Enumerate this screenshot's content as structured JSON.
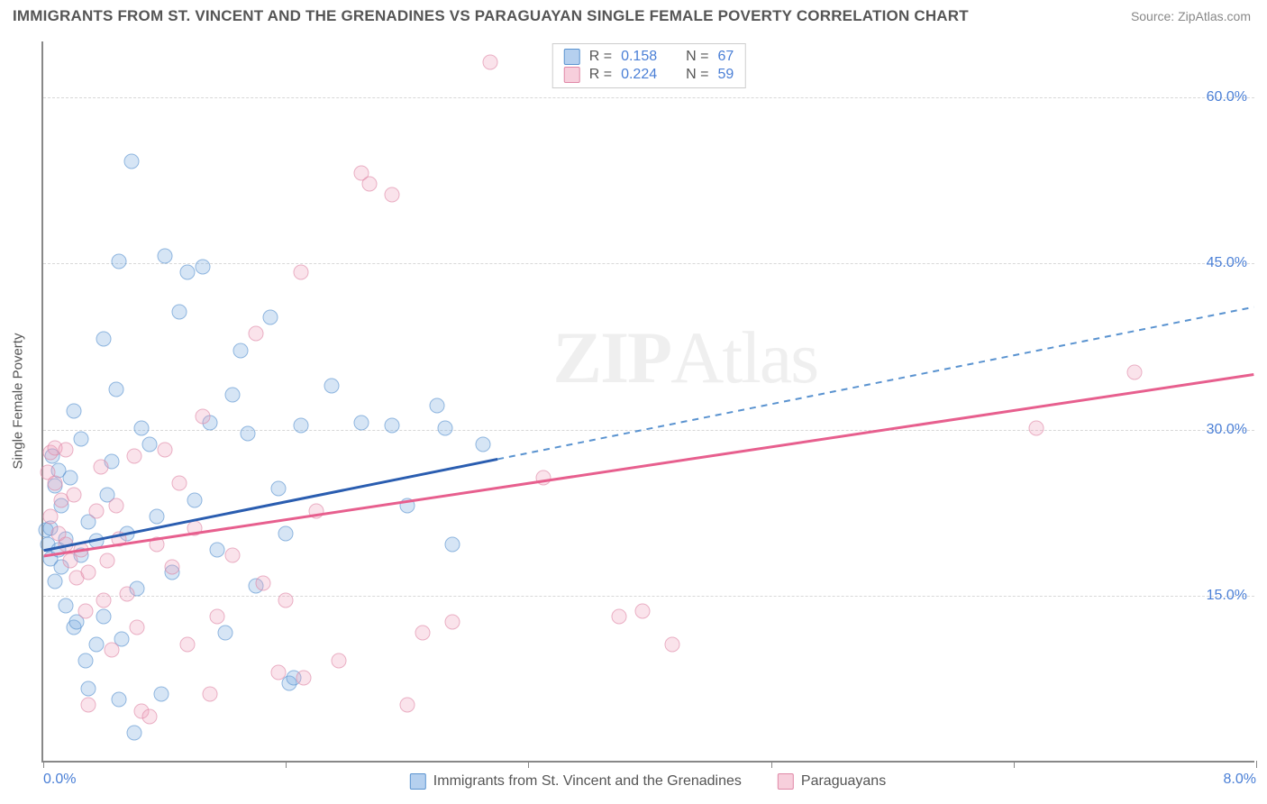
{
  "header": {
    "title": "IMMIGRANTS FROM ST. VINCENT AND THE GRENADINES VS PARAGUAYAN SINGLE FEMALE POVERTY CORRELATION CHART",
    "source": "Source: ZipAtlas.com"
  },
  "chart": {
    "type": "scatter",
    "ylabel": "Single Female Poverty",
    "watermark": "ZIPAtlas",
    "x_axis": {
      "min": 0.0,
      "max": 8.0,
      "ticks": [
        0.0,
        8.0
      ],
      "tick_labels": [
        "0.0%",
        "8.0%"
      ],
      "minor_tick_positions": [
        0.0,
        1.6,
        3.2,
        4.8,
        6.4,
        8.0
      ]
    },
    "y_axis": {
      "min": 0.0,
      "max": 65.0,
      "ticks": [
        15.0,
        30.0,
        45.0,
        60.0
      ],
      "tick_labels": [
        "15.0%",
        "30.0%",
        "45.0%",
        "60.0%"
      ]
    },
    "grid_color": "#d8d8d8",
    "axis_color": "#888888",
    "background": "#ffffff",
    "series": [
      {
        "name": "Immigrants from St. Vincent and the Grenadines",
        "color_fill": "rgba(120,170,225,0.45)",
        "color_stroke": "#5a93d0",
        "r_value": 0.158,
        "n_value": 67,
        "trend": {
          "y_intercept": 19.0,
          "slope": 2.75,
          "solid_until_x": 3.0,
          "color": "#2a5db0",
          "dash_color": "#5a93d0"
        },
        "points": [
          [
            0.02,
            20.8
          ],
          [
            0.03,
            19.5
          ],
          [
            0.05,
            21.0
          ],
          [
            0.05,
            18.2
          ],
          [
            0.06,
            27.5
          ],
          [
            0.08,
            24.8
          ],
          [
            0.08,
            16.2
          ],
          [
            0.1,
            19.0
          ],
          [
            0.1,
            26.2
          ],
          [
            0.12,
            23.0
          ],
          [
            0.12,
            17.5
          ],
          [
            0.15,
            20.0
          ],
          [
            0.15,
            14.0
          ],
          [
            0.18,
            25.5
          ],
          [
            0.2,
            31.5
          ],
          [
            0.2,
            12.0
          ],
          [
            0.22,
            12.5
          ],
          [
            0.25,
            18.5
          ],
          [
            0.25,
            29.0
          ],
          [
            0.28,
            9.0
          ],
          [
            0.3,
            21.5
          ],
          [
            0.3,
            6.5
          ],
          [
            0.35,
            19.8
          ],
          [
            0.35,
            10.5
          ],
          [
            0.4,
            38.0
          ],
          [
            0.4,
            13.0
          ],
          [
            0.42,
            24.0
          ],
          [
            0.45,
            27.0
          ],
          [
            0.48,
            33.5
          ],
          [
            0.5,
            45.0
          ],
          [
            0.5,
            5.5
          ],
          [
            0.52,
            11.0
          ],
          [
            0.55,
            20.5
          ],
          [
            0.58,
            54.0
          ],
          [
            0.6,
            2.5
          ],
          [
            0.62,
            15.5
          ],
          [
            0.65,
            30.0
          ],
          [
            0.7,
            28.5
          ],
          [
            0.75,
            22.0
          ],
          [
            0.78,
            6.0
          ],
          [
            0.8,
            45.5
          ],
          [
            0.85,
            17.0
          ],
          [
            0.9,
            40.5
          ],
          [
            0.95,
            44.0
          ],
          [
            1.0,
            23.5
          ],
          [
            1.05,
            44.5
          ],
          [
            1.1,
            30.5
          ],
          [
            1.15,
            19.0
          ],
          [
            1.2,
            11.5
          ],
          [
            1.25,
            33.0
          ],
          [
            1.3,
            37.0
          ],
          [
            1.35,
            29.5
          ],
          [
            1.4,
            15.8
          ],
          [
            1.5,
            40.0
          ],
          [
            1.55,
            24.5
          ],
          [
            1.6,
            20.5
          ],
          [
            1.62,
            7.0
          ],
          [
            1.65,
            7.5
          ],
          [
            1.7,
            30.2
          ],
          [
            1.9,
            33.8
          ],
          [
            2.1,
            30.5
          ],
          [
            2.3,
            30.2
          ],
          [
            2.4,
            23.0
          ],
          [
            2.6,
            32.0
          ],
          [
            2.65,
            30.0
          ],
          [
            2.7,
            19.5
          ],
          [
            2.9,
            28.5
          ]
        ]
      },
      {
        "name": "Paraguayans",
        "color_fill": "rgba(240,160,185,0.42)",
        "color_stroke": "#e088a7",
        "r_value": 0.224,
        "n_value": 59,
        "trend": {
          "y_intercept": 18.5,
          "slope": 2.05,
          "solid_until_x": 8.0,
          "color": "#e75f8e",
          "dash_color": "#e75f8e"
        },
        "points": [
          [
            0.03,
            26.0
          ],
          [
            0.05,
            27.8
          ],
          [
            0.05,
            22.0
          ],
          [
            0.08,
            28.2
          ],
          [
            0.08,
            25.0
          ],
          [
            0.1,
            20.5
          ],
          [
            0.12,
            23.5
          ],
          [
            0.15,
            19.5
          ],
          [
            0.15,
            28.0
          ],
          [
            0.18,
            18.0
          ],
          [
            0.2,
            24.0
          ],
          [
            0.22,
            16.5
          ],
          [
            0.25,
            19.0
          ],
          [
            0.28,
            13.5
          ],
          [
            0.3,
            17.0
          ],
          [
            0.3,
            5.0
          ],
          [
            0.35,
            22.5
          ],
          [
            0.38,
            26.5
          ],
          [
            0.4,
            14.5
          ],
          [
            0.42,
            18.0
          ],
          [
            0.45,
            10.0
          ],
          [
            0.48,
            23.0
          ],
          [
            0.5,
            20.0
          ],
          [
            0.55,
            15.0
          ],
          [
            0.6,
            27.5
          ],
          [
            0.62,
            12.0
          ],
          [
            0.65,
            4.5
          ],
          [
            0.7,
            4.0
          ],
          [
            0.75,
            19.5
          ],
          [
            0.8,
            28.0
          ],
          [
            0.85,
            17.5
          ],
          [
            0.9,
            25.0
          ],
          [
            0.95,
            10.5
          ],
          [
            1.0,
            21.0
          ],
          [
            1.05,
            31.0
          ],
          [
            1.1,
            6.0
          ],
          [
            1.15,
            13.0
          ],
          [
            1.25,
            18.5
          ],
          [
            1.4,
            38.5
          ],
          [
            1.45,
            16.0
          ],
          [
            1.55,
            8.0
          ],
          [
            1.6,
            14.5
          ],
          [
            1.7,
            44.0
          ],
          [
            1.72,
            7.5
          ],
          [
            1.8,
            22.5
          ],
          [
            1.95,
            9.0
          ],
          [
            2.1,
            53.0
          ],
          [
            2.15,
            52.0
          ],
          [
            2.3,
            51.0
          ],
          [
            2.4,
            5.0
          ],
          [
            2.5,
            11.5
          ],
          [
            2.7,
            12.5
          ],
          [
            2.95,
            63.0
          ],
          [
            3.3,
            25.5
          ],
          [
            3.8,
            13.0
          ],
          [
            3.95,
            13.5
          ],
          [
            4.15,
            10.5
          ],
          [
            6.55,
            30.0
          ],
          [
            7.2,
            35.0
          ]
        ]
      }
    ],
    "legend_top": {
      "rows": [
        {
          "series": 0,
          "r_label": "R =",
          "r_val": "0.158",
          "n_label": "N =",
          "n_val": "67"
        },
        {
          "series": 1,
          "r_label": "R =",
          "r_val": "0.224",
          "n_label": "N =",
          "n_val": "59"
        }
      ]
    },
    "legend_bottom": {
      "items": [
        {
          "series": 0,
          "label": "Immigrants from St. Vincent and the Grenadines"
        },
        {
          "series": 1,
          "label": "Paraguayans"
        }
      ]
    }
  }
}
